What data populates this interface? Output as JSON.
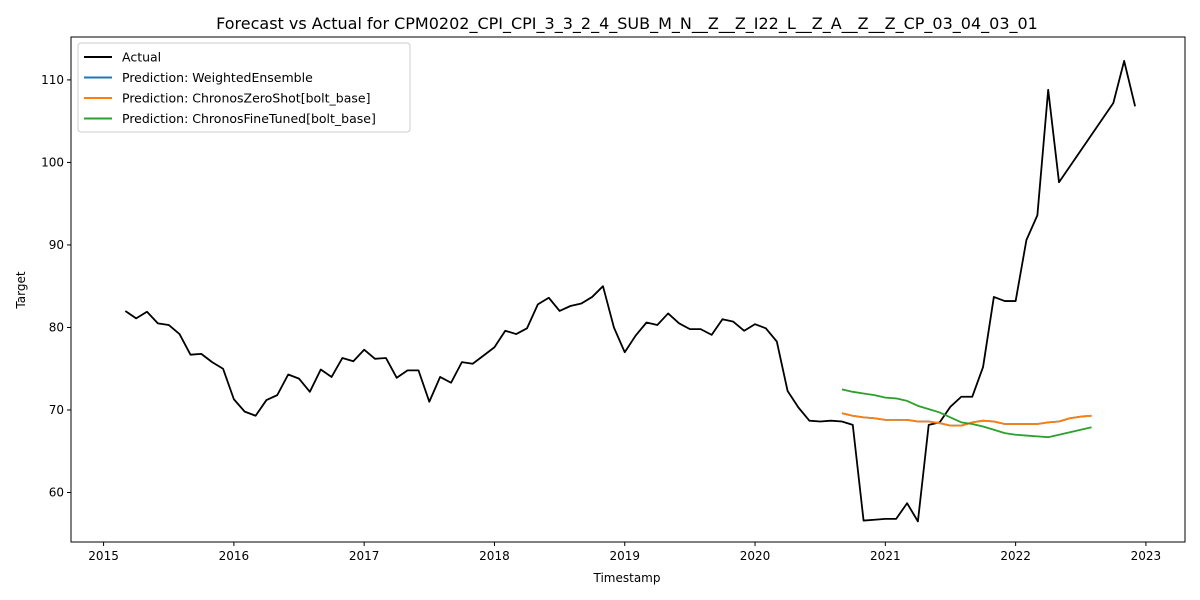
{
  "chart_data": {
    "type": "line",
    "title": "Forecast vs Actual for CPM0202_CPI_CPI_3_3_2_4_SUB_M_N__Z__Z_I22_L__Z_A__Z__Z_CP_03_04_03_01",
    "xlabel": "Timestamp",
    "ylabel": "Target",
    "xlim": [
      2014.75,
      2023.3
    ],
    "ylim": [
      54,
      115.2
    ],
    "x_ticks": [
      2015,
      2016,
      2017,
      2018,
      2019,
      2020,
      2021,
      2022,
      2023
    ],
    "y_ticks": [
      60,
      70,
      80,
      90,
      100,
      110
    ],
    "grid": false,
    "legend_position": "upper-left",
    "series": [
      {
        "name": "Actual",
        "color": "#000000",
        "points": [
          [
            2015.167,
            82.0
          ],
          [
            2015.25,
            81.1
          ],
          [
            2015.333,
            81.9
          ],
          [
            2015.417,
            80.5
          ],
          [
            2015.5,
            80.3
          ],
          [
            2015.583,
            79.2
          ],
          [
            2015.667,
            76.7
          ],
          [
            2015.75,
            76.8
          ],
          [
            2015.833,
            75.8
          ],
          [
            2015.917,
            75.0
          ],
          [
            2016.0,
            71.3
          ],
          [
            2016.083,
            69.8
          ],
          [
            2016.167,
            69.3
          ],
          [
            2016.25,
            71.2
          ],
          [
            2016.333,
            71.8
          ],
          [
            2016.417,
            74.3
          ],
          [
            2016.5,
            73.8
          ],
          [
            2016.583,
            72.2
          ],
          [
            2016.667,
            74.9
          ],
          [
            2016.75,
            74.0
          ],
          [
            2016.833,
            76.3
          ],
          [
            2016.917,
            75.9
          ],
          [
            2017.0,
            77.3
          ],
          [
            2017.083,
            76.2
          ],
          [
            2017.167,
            76.3
          ],
          [
            2017.25,
            73.9
          ],
          [
            2017.333,
            74.8
          ],
          [
            2017.417,
            74.8
          ],
          [
            2017.5,
            71.0
          ],
          [
            2017.583,
            74.0
          ],
          [
            2017.667,
            73.3
          ],
          [
            2017.75,
            75.8
          ],
          [
            2017.833,
            75.6
          ],
          [
            2017.917,
            76.6
          ],
          [
            2018.0,
            77.6
          ],
          [
            2018.083,
            79.6
          ],
          [
            2018.167,
            79.2
          ],
          [
            2018.25,
            79.9
          ],
          [
            2018.333,
            82.8
          ],
          [
            2018.417,
            83.6
          ],
          [
            2018.5,
            82.0
          ],
          [
            2018.583,
            82.6
          ],
          [
            2018.667,
            82.9
          ],
          [
            2018.75,
            83.7
          ],
          [
            2018.833,
            85.0
          ],
          [
            2018.917,
            80.0
          ],
          [
            2019.0,
            77.0
          ],
          [
            2019.083,
            79.0
          ],
          [
            2019.167,
            80.6
          ],
          [
            2019.25,
            80.3
          ],
          [
            2019.333,
            81.7
          ],
          [
            2019.417,
            80.5
          ],
          [
            2019.5,
            79.8
          ],
          [
            2019.583,
            79.8
          ],
          [
            2019.667,
            79.1
          ],
          [
            2019.75,
            81.0
          ],
          [
            2019.833,
            80.7
          ],
          [
            2019.917,
            79.6
          ],
          [
            2020.0,
            80.4
          ],
          [
            2020.083,
            79.9
          ],
          [
            2020.167,
            78.3
          ],
          [
            2020.25,
            72.3
          ],
          [
            2020.333,
            70.3
          ],
          [
            2020.417,
            68.7
          ],
          [
            2020.5,
            68.6
          ],
          [
            2020.583,
            68.7
          ],
          [
            2020.667,
            68.6
          ],
          [
            2020.75,
            68.2
          ],
          [
            2020.833,
            56.6
          ],
          [
            2020.917,
            56.7
          ],
          [
            2021.0,
            56.8
          ],
          [
            2021.083,
            56.8
          ],
          [
            2021.167,
            58.7
          ],
          [
            2021.25,
            56.5
          ],
          [
            2021.333,
            68.2
          ],
          [
            2021.417,
            68.5
          ],
          [
            2021.5,
            70.4
          ],
          [
            2021.583,
            71.6
          ],
          [
            2021.667,
            71.6
          ],
          [
            2021.75,
            75.2
          ],
          [
            2021.833,
            83.7
          ],
          [
            2021.917,
            83.2
          ],
          [
            2022.0,
            83.2
          ],
          [
            2022.083,
            90.6
          ],
          [
            2022.167,
            93.6
          ],
          [
            2022.25,
            108.8
          ],
          [
            2022.333,
            97.6
          ],
          [
            2022.75,
            107.2
          ],
          [
            2022.833,
            112.3
          ],
          [
            2022.917,
            106.8
          ]
        ]
      },
      {
        "name": "Prediction: WeightedEnsemble",
        "color": "#1f77b4",
        "points": [
          [
            2020.667,
            69.6
          ],
          [
            2020.75,
            69.3
          ],
          [
            2020.833,
            69.1
          ],
          [
            2020.917,
            69.0
          ],
          [
            2021.0,
            68.8
          ],
          [
            2021.083,
            68.8
          ],
          [
            2021.167,
            68.8
          ],
          [
            2021.25,
            68.6
          ],
          [
            2021.333,
            68.6
          ],
          [
            2021.417,
            68.4
          ],
          [
            2021.5,
            68.1
          ],
          [
            2021.583,
            68.1
          ],
          [
            2021.667,
            68.5
          ],
          [
            2021.75,
            68.7
          ],
          [
            2021.833,
            68.6
          ],
          [
            2021.917,
            68.3
          ],
          [
            2022.0,
            68.3
          ],
          [
            2022.083,
            68.3
          ],
          [
            2022.167,
            68.3
          ],
          [
            2022.25,
            68.5
          ],
          [
            2022.333,
            68.6
          ],
          [
            2022.417,
            69.0
          ],
          [
            2022.5,
            69.2
          ],
          [
            2022.583,
            69.3
          ]
        ]
      },
      {
        "name": "Prediction: ChronosZeroShot[bolt_base]",
        "color": "#ff7f0e",
        "points": [
          [
            2020.667,
            69.6
          ],
          [
            2020.75,
            69.3
          ],
          [
            2020.833,
            69.1
          ],
          [
            2020.917,
            69.0
          ],
          [
            2021.0,
            68.8
          ],
          [
            2021.083,
            68.8
          ],
          [
            2021.167,
            68.8
          ],
          [
            2021.25,
            68.6
          ],
          [
            2021.333,
            68.6
          ],
          [
            2021.417,
            68.4
          ],
          [
            2021.5,
            68.1
          ],
          [
            2021.583,
            68.1
          ],
          [
            2021.667,
            68.5
          ],
          [
            2021.75,
            68.7
          ],
          [
            2021.833,
            68.6
          ],
          [
            2021.917,
            68.3
          ],
          [
            2022.0,
            68.3
          ],
          [
            2022.083,
            68.3
          ],
          [
            2022.167,
            68.3
          ],
          [
            2022.25,
            68.5
          ],
          [
            2022.333,
            68.6
          ],
          [
            2022.417,
            69.0
          ],
          [
            2022.5,
            69.2
          ],
          [
            2022.583,
            69.3
          ]
        ]
      },
      {
        "name": "Prediction: ChronosFineTuned[bolt_base]",
        "color": "#2ca02c",
        "points": [
          [
            2020.667,
            72.5
          ],
          [
            2020.75,
            72.2
          ],
          [
            2020.833,
            72.0
          ],
          [
            2020.917,
            71.8
          ],
          [
            2021.0,
            71.5
          ],
          [
            2021.083,
            71.4
          ],
          [
            2021.167,
            71.1
          ],
          [
            2021.25,
            70.5
          ],
          [
            2021.333,
            70.1
          ],
          [
            2021.417,
            69.7
          ],
          [
            2021.5,
            69.1
          ],
          [
            2021.583,
            68.5
          ],
          [
            2021.667,
            68.3
          ],
          [
            2021.75,
            68.0
          ],
          [
            2021.833,
            67.6
          ],
          [
            2021.917,
            67.2
          ],
          [
            2022.0,
            67.0
          ],
          [
            2022.083,
            66.9
          ],
          [
            2022.167,
            66.8
          ],
          [
            2022.25,
            66.7
          ],
          [
            2022.333,
            67.0
          ],
          [
            2022.417,
            67.3
          ],
          [
            2022.5,
            67.6
          ],
          [
            2022.583,
            67.9
          ]
        ]
      }
    ]
  }
}
